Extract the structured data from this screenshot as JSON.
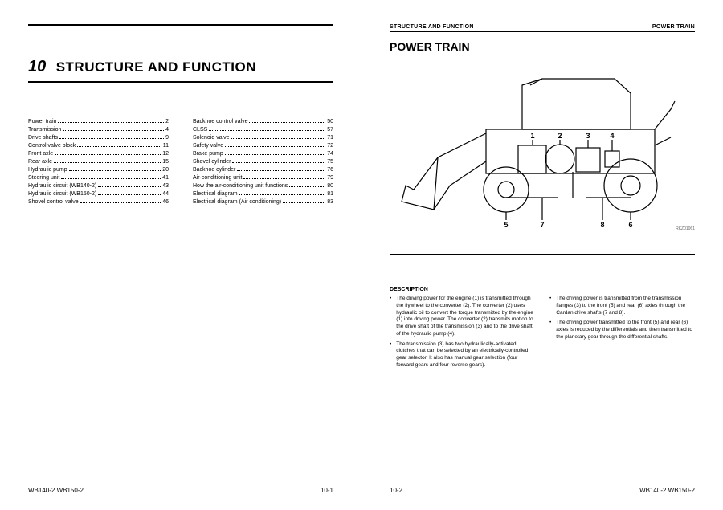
{
  "left_page": {
    "chapter_number": "10",
    "chapter_title": "STRUCTURE AND FUNCTION",
    "toc_left": [
      {
        "label": "Power train",
        "page": "2"
      },
      {
        "label": "Transmission",
        "page": "4"
      },
      {
        "label": "Drive shafts",
        "page": "9"
      },
      {
        "label": "Control valve block",
        "page": "11"
      },
      {
        "label": "Front axle",
        "page": "12"
      },
      {
        "label": "Rear axle",
        "page": "15"
      },
      {
        "label": "Hydraulic pump",
        "page": "20"
      },
      {
        "label": "Steering unit",
        "page": "41"
      },
      {
        "label": "Hydraulic circuit (WB140-2)",
        "page": "43"
      },
      {
        "label": "Hydraulic circuit (WB150-2)",
        "page": "44"
      },
      {
        "label": "Shovel control valve",
        "page": "46"
      }
    ],
    "toc_right": [
      {
        "label": "Backhoe control valve",
        "page": "50"
      },
      {
        "label": "CLSS",
        "page": "57"
      },
      {
        "label": "Solenoid valve",
        "page": "71"
      },
      {
        "label": "Safety valve",
        "page": "72"
      },
      {
        "label": "Brake pump",
        "page": "74"
      },
      {
        "label": "Shovel cylinder",
        "page": "75"
      },
      {
        "label": "Backhoe cylinder",
        "page": "76"
      },
      {
        "label": "Air-conditioning unit",
        "page": "79"
      },
      {
        "label": "How the air-conditioning unit functions",
        "page": "80"
      },
      {
        "label": "Electrical diagram",
        "page": "81"
      },
      {
        "label": "Electrical diagram (Air conditioning)",
        "page": "83"
      }
    ],
    "footer_model": "WB140-2 WB150-2",
    "footer_page": "10-1"
  },
  "right_page": {
    "header_left": "STRUCTURE AND FUNCTION",
    "header_right": "POWER TRAIN",
    "section_title": "POWER TRAIN",
    "diagram": {
      "id_label": "RKZ01061",
      "callouts": [
        "1",
        "2",
        "3",
        "4",
        "5",
        "6",
        "7",
        "8"
      ]
    },
    "description_heading": "DESCRIPTION",
    "desc_left": [
      "The driving power for the engine (1) is transmitted through the flywheel to the converter (2). The converter (2) uses hydraulic oil to convert the torque transmitted by the engine (1) into driving power. The converter (2) transmits motion to the drive shaft of the transmission (3) and to the drive shaft of the hydraulic pump (4).",
      "The transmission (3) has two hydraulically-activated clutches that can be selected by an electrically-controlled gear selector. It also has manual gear selection (four forward gears and four reverse gears)."
    ],
    "desc_right": [
      "The driving power is transmitted from the transmission flanges (3) to the front (5) and rear (6) axles through the Cardan drive shafts (7 and 8).",
      "The driving power transmitted to the front (5) and rear (6) axles is reduced by the differentials and then transmitted to the planetary gear through the differential shafts."
    ],
    "footer_page": "10-2",
    "footer_model": "WB140-2 WB150-2"
  }
}
